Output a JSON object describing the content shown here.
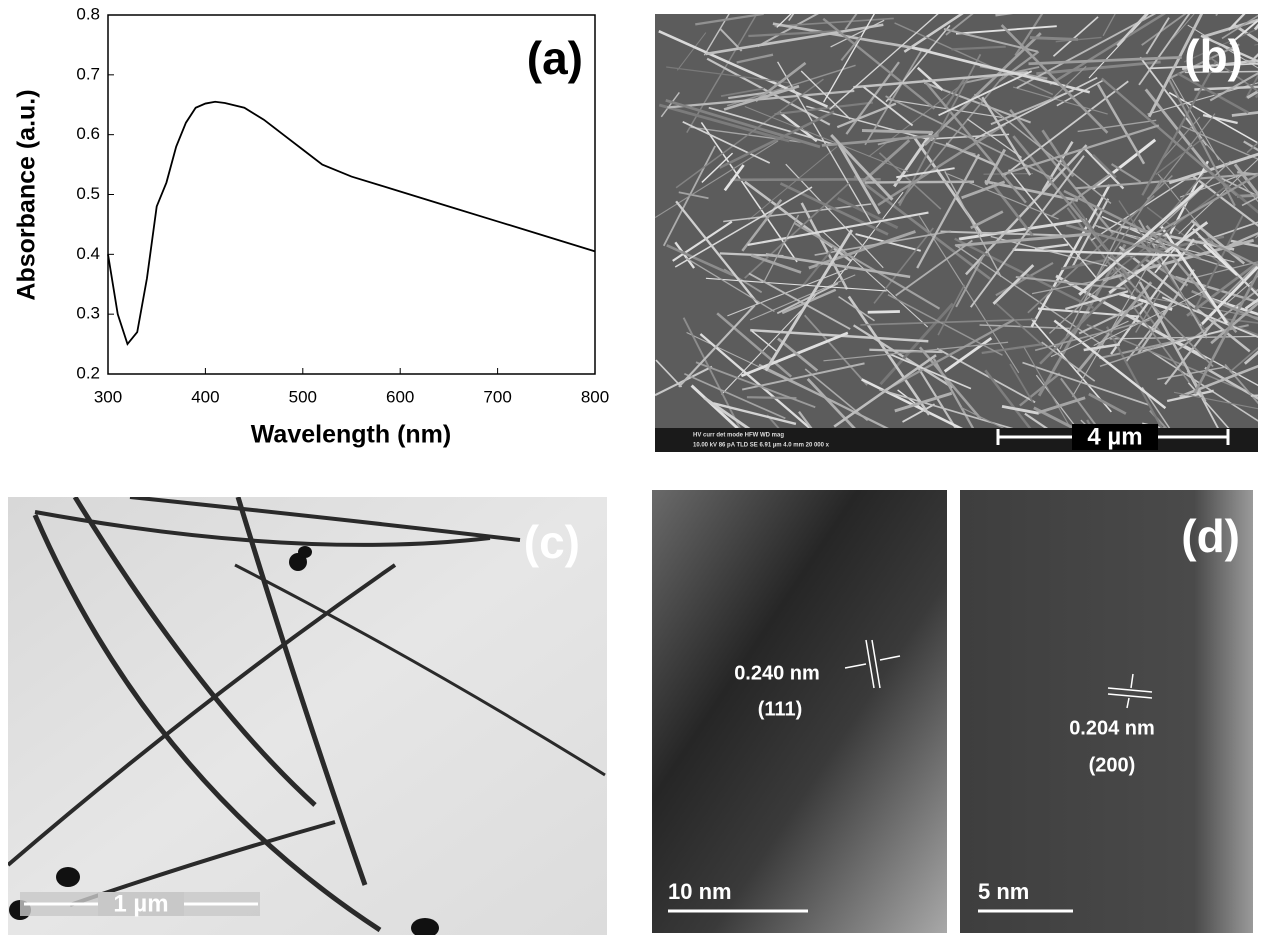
{
  "chart_data": {
    "type": "line",
    "panel_label": "(a)",
    "x_label": "Wavelength (nm)",
    "y_label": "Absorbance (a.u.)",
    "x": [
      300,
      310,
      320,
      330,
      340,
      350,
      360,
      370,
      380,
      390,
      400,
      410,
      420,
      440,
      460,
      480,
      500,
      520,
      550,
      580,
      600,
      650,
      700,
      750,
      800
    ],
    "values": [
      0.4,
      0.3,
      0.25,
      0.27,
      0.36,
      0.48,
      0.52,
      0.58,
      0.62,
      0.645,
      0.652,
      0.655,
      0.653,
      0.645,
      0.625,
      0.6,
      0.575,
      0.55,
      0.53,
      0.515,
      0.505,
      0.48,
      0.455,
      0.43,
      0.405
    ],
    "color": "#000000",
    "xlim": [
      300,
      800
    ],
    "xticks": [
      300,
      400,
      500,
      600,
      700,
      800
    ],
    "ylim": [
      0.2,
      0.8
    ],
    "yticks": [
      0.2,
      0.3,
      0.4,
      0.5,
      0.6,
      0.7,
      0.8
    ]
  },
  "panels": {
    "b": {
      "label": "(b)",
      "scale_bar": "4 µm",
      "info_heads": "HV   curr   det   mode   HFW   WD   mag",
      "info_values": "10.00 kV  86 pA  TLD  SE  6.91 µm  4.0 mm  20 000 x"
    },
    "c": {
      "label": "(c)",
      "scale_bar": "1 µm"
    },
    "d": {
      "label": "(d)",
      "left": {
        "spacing": "0.240 nm",
        "plane": "(111)",
        "scale_bar": "10 nm"
      },
      "right": {
        "spacing": "0.204 nm",
        "plane": "(200)",
        "scale_bar": "5 nm"
      }
    }
  }
}
